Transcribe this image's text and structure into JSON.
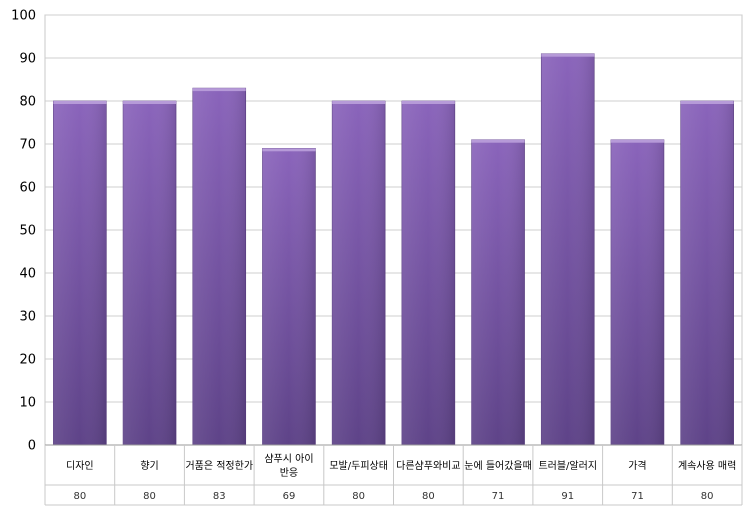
{
  "chart_data": {
    "type": "bar",
    "categories": [
      "디자인",
      "향기",
      "거품은 적정한가",
      "샴푸시 아이 반응",
      "모발/두피상태",
      "다른샴푸와비교",
      "눈에 들어갔을때",
      "트러블/알러지",
      "가격",
      "계속사용 매력"
    ],
    "values": [
      80,
      80,
      83,
      69,
      80,
      80,
      71,
      91,
      71,
      80
    ],
    "value_labels": [
      "80",
      "80",
      "83",
      "69",
      "80",
      "80",
      "71",
      "91",
      "71",
      "80"
    ],
    "yticks": [
      "0",
      "10",
      "20",
      "30",
      "40",
      "50",
      "60",
      "70",
      "80",
      "90",
      "100"
    ],
    "ylim": [
      0,
      100
    ],
    "grid": true,
    "bar_color": "#7b59a8",
    "title": "",
    "xlabel": "",
    "ylabel": ""
  }
}
